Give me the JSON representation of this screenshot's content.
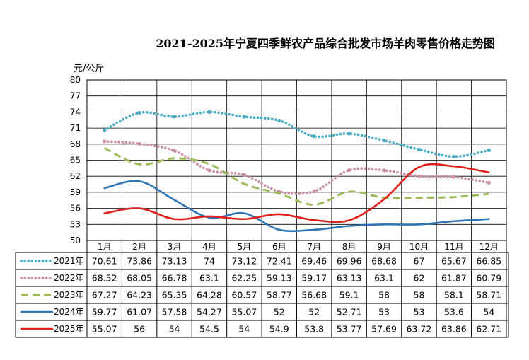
{
  "title": "2021-2025年宁夏四季鲜农产品综合批发市场羊肉零售价格走势图",
  "chart_data": {
    "type": "line",
    "title": "2021-2025年宁夏四季鲜农产品综合批发市场羊肉零售价格走势图",
    "ylabel": "元/公斤",
    "xlabel": "",
    "ylim": [
      50,
      80
    ],
    "yticks": [
      "80",
      "77",
      "74",
      "71",
      "68",
      "65",
      "62",
      "59",
      "56",
      "53",
      "50"
    ],
    "categories": [
      "1月",
      "2月",
      "3月",
      "4月",
      "5月",
      "6月",
      "7月",
      "8月",
      "9月",
      "10月",
      "11月",
      "12月"
    ],
    "series": [
      {
        "name": "2021年",
        "color": "#4bacc6",
        "dash": "dot",
        "values": [
          70.61,
          73.86,
          73.13,
          74,
          73.12,
          72.41,
          69.46,
          69.96,
          68.68,
          67,
          65.67,
          66.85
        ],
        "labels": [
          "70.61",
          "73.86",
          "73.13",
          "74",
          "73.12",
          "72.41",
          "69.46",
          "69.96",
          "68.68",
          "67",
          "65.67",
          "66.85"
        ]
      },
      {
        "name": "2022年",
        "color": "#c990a6",
        "dash": "dot",
        "values": [
          68.52,
          68.05,
          66.78,
          63.1,
          62.25,
          59.13,
          59.17,
          63.13,
          63.1,
          62,
          61.87,
          60.79
        ],
        "labels": [
          "68.52",
          "68.05",
          "66.78",
          "63.1",
          "62.25",
          "59.13",
          "59.17",
          "63.13",
          "63.1",
          "62",
          "61.87",
          "60.79"
        ]
      },
      {
        "name": "2023年",
        "color": "#9bbb59",
        "dash": "dash",
        "values": [
          67.27,
          64.23,
          65.35,
          64.28,
          60.57,
          58.77,
          56.68,
          59.1,
          58,
          58,
          58.1,
          58.71
        ],
        "labels": [
          "67.27",
          "64.23",
          "65.35",
          "64.28",
          "60.57",
          "58.77",
          "56.68",
          "59.1",
          "58",
          "58",
          "58.1",
          "58.71"
        ]
      },
      {
        "name": "2024年",
        "color": "#2e75b6",
        "dash": "solid",
        "values": [
          59.77,
          61.07,
          57.58,
          54.27,
          55.07,
          52,
          52,
          52.71,
          53,
          53,
          53.6,
          54
        ],
        "labels": [
          "59.77",
          "61.07",
          "57.58",
          "54.27",
          "55.07",
          "52",
          "52",
          "52.71",
          "53",
          "53",
          "53.6",
          "54"
        ]
      },
      {
        "name": "2025年",
        "color": "#e0201b",
        "dash": "solid",
        "values": [
          55.07,
          56,
          54,
          54.5,
          54,
          54.9,
          53.8,
          53.77,
          57.69,
          63.72,
          63.86,
          62.71
        ],
        "labels": [
          "55.07",
          "56",
          "54",
          "54.5",
          "54",
          "54.9",
          "53.8",
          "53.77",
          "57.69",
          "63.72",
          "63.86",
          "62.71"
        ]
      }
    ]
  }
}
